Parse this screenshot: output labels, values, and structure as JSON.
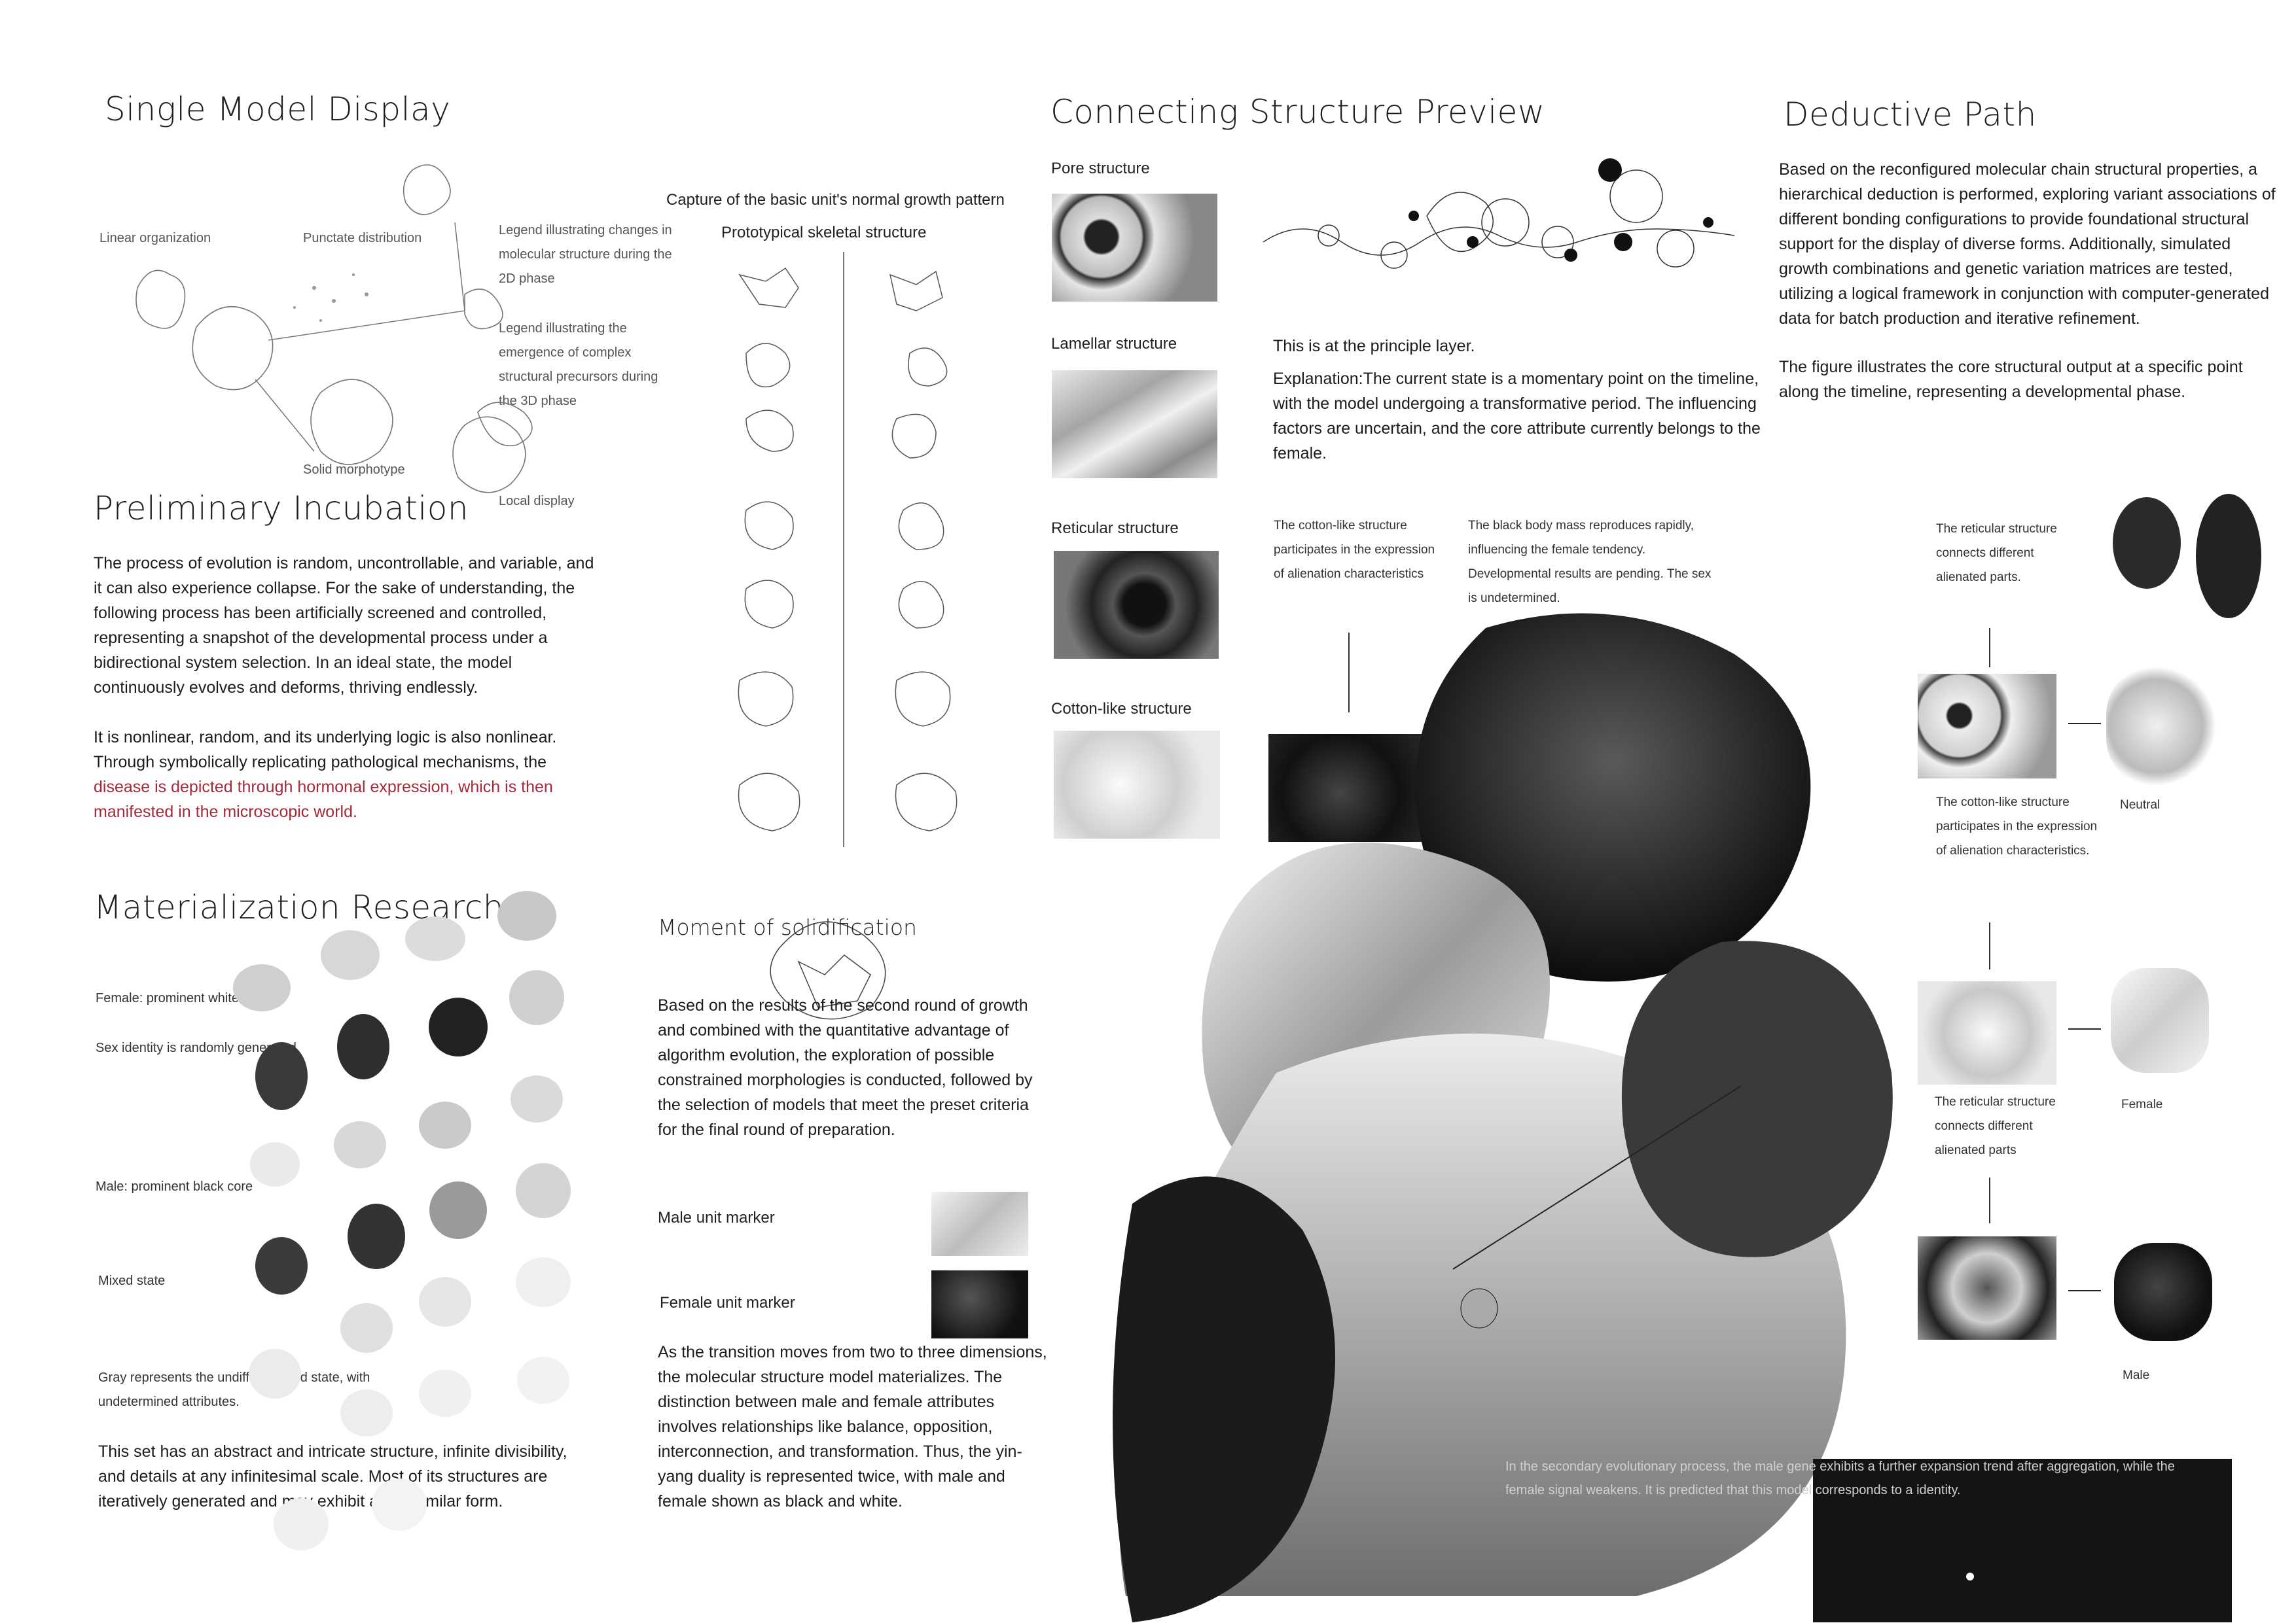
{
  "single": {
    "title": "Single Model Display",
    "linear": "Linear organization",
    "punctate": "Punctate distribution",
    "legend2d": "Legend illustrating changes in molecular structure during the 2D phase",
    "legend3d": "Legend illustrating the emergence of complex structural precursors during the 3D phase",
    "solid": "Solid morphotype",
    "local": "Local display"
  },
  "growth": {
    "capture": "Capture of the basic unit's normal growth pattern",
    "proto": "Prototypical skeletal structure"
  },
  "prelim": {
    "title": "Preliminary Incubation",
    "p1": "The process of evolution is random, uncontrollable, and variable, and it can also experience collapse. For the sake of understanding, the following process has been artificially screened and controlled, representing a snapshot of the developmental process under a bidirectional system selection. In an ideal state, the model continuously evolves and deforms, thriving endlessly.",
    "p2a": "It is nonlinear, random, and its underlying logic is also nonlinear. Through symbolically replicating pathological mechanisms, the",
    "p2b": "disease is depicted through hormonal expression, which is then manifested in the microscopic world."
  },
  "material": {
    "title": "Materialization Research",
    "female": "Female: prominent white core",
    "sex": "Sex identity is randomly generated.",
    "male": "Male: prominent black core",
    "mixed": "Mixed state",
    "gray": "Gray represents the undifferentiated state, with undetermined attributes.",
    "p": "This set has an abstract and intricate structure, infinite divisibility, and details at any infinitesimal scale. Most of its structures are iteratively generated and may exhibit a self-similar form."
  },
  "moment": {
    "title": "Moment of solidification",
    "p1": "Based on the results of the second round of growth and combined with the quantitative advantage of algorithm evolution, the exploration of possible constrained morphologies is conducted, followed by the selection of models that meet the preset criteria for the final round of preparation.",
    "male_marker": "Male unit marker",
    "female_marker": "Female unit marker",
    "p2": "As the transition moves from two to three dimensions, the molecular structure model materializes. The distinction between male and female attributes involves relationships like balance, opposition, interconnection, and transformation. Thus, the yin-yang duality is represented twice, with male and female shown as black and white."
  },
  "connect": {
    "title": "Connecting Structure Preview",
    "pore": "Pore structure",
    "lamellar": "Lamellar structure",
    "reticular": "Reticular structure",
    "cotton": "Cotton-like structure",
    "principle": "This is at the principle layer.",
    "explanation": "Explanation:The current state is a momentary point on the timeline, with the model undergoing a transformative period. The influencing factors are uncertain, and the core attribute currently belongs to the female.",
    "cotton_note": "The cotton-like structure participates in the expression of alienation characteristics",
    "black_note": "The black body mass reproduces rapidly, influencing the female tendency. Developmental results are pending. The sex is undetermined.",
    "bottom_note": "In the secondary evolutionary process, the male gene exhibits a further expansion trend after aggregation, while the female signal weakens. It is predicted that this model corresponds to a identity."
  },
  "deductive": {
    "title": "Deductive Path",
    "p1": "Based on the reconfigured molecular chain structural properties, a hierarchical deduction is performed, exploring variant associations of different bonding configurations to provide foundational structural support for the display of diverse forms. Additionally, simulated growth combinations and genetic variation matrices are tested, utilizing a logical framework in conjunction with computer-generated data for batch production and iterative refinement.",
    "p2": "The figure illustrates the core structural output at a specific point along the timeline, representing a developmental phase.",
    "reticular_a": "The reticular structure connects different alienated parts.",
    "cotton_b": "The cotton-like structure participates in the expression of alienation characteristics.",
    "neutral": "Neutral",
    "reticular_c": "The reticular structure connects different alienated parts",
    "female": "Female",
    "male": "Male"
  },
  "colors": {
    "accent_red": "#a42a3a",
    "ink": "#1c1c1c"
  }
}
